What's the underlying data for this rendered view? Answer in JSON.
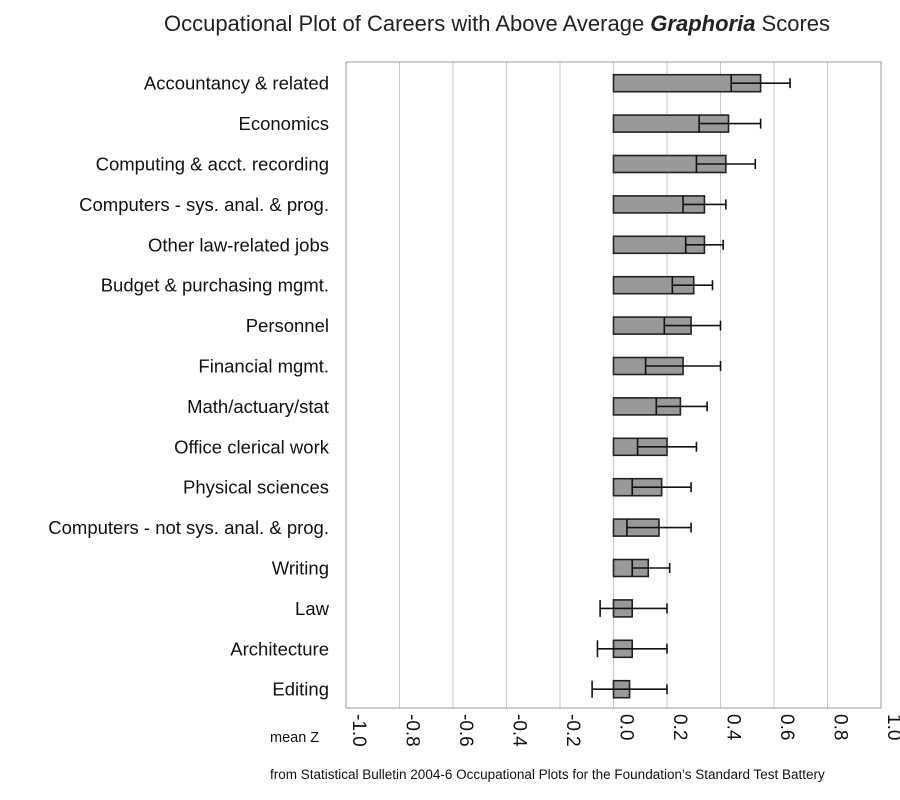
{
  "chart_data": {
    "type": "bar",
    "orientation": "horizontal",
    "title_prefix": "Occupational Plot of Careers with Above Average ",
    "title_emphasis": "Graphoria",
    "title_suffix": " Scores",
    "xlabel": "mean Z",
    "source": "from Statistical Bulletin 2004-6 Occupational Plots for the Foundation’s Standard Test Battery",
    "xlim": [
      -1.0,
      1.0
    ],
    "ticks": [
      -1.0,
      -0.8,
      -0.6,
      -0.4,
      -0.2,
      0.0,
      0.2,
      0.4,
      0.6,
      0.8,
      1.0
    ],
    "tick_labels": [
      "-1.0",
      "-0.8",
      "-0.6",
      "-0.4",
      "-0.2",
      "0.0",
      "0.2",
      "0.4",
      "0.6",
      "0.8",
      "1.0"
    ],
    "gridlines": true,
    "categories": [
      "Accountancy & related",
      "Economics",
      "Computing & acct. recording",
      "Computers - sys. anal. & prog.",
      "Other law-related jobs",
      "Budget & purchasing mgmt.",
      "Personnel",
      "Financial mgmt.",
      "Math/actuary/stat",
      "Office clerical work",
      "Physical sciences",
      "Computers - not sys. anal. & prog.",
      "Writing",
      "Law",
      "Architecture",
      "Editing"
    ],
    "values": [
      0.55,
      0.43,
      0.42,
      0.34,
      0.34,
      0.3,
      0.29,
      0.26,
      0.25,
      0.2,
      0.18,
      0.17,
      0.13,
      0.07,
      0.07,
      0.06
    ],
    "error_low": [
      0.44,
      0.32,
      0.31,
      0.26,
      0.27,
      0.22,
      0.19,
      0.12,
      0.16,
      0.09,
      0.07,
      0.05,
      0.07,
      -0.05,
      -0.06,
      -0.08
    ],
    "error_high": [
      0.66,
      0.55,
      0.53,
      0.42,
      0.41,
      0.37,
      0.4,
      0.4,
      0.35,
      0.31,
      0.29,
      0.29,
      0.21,
      0.2,
      0.2,
      0.2
    ]
  }
}
